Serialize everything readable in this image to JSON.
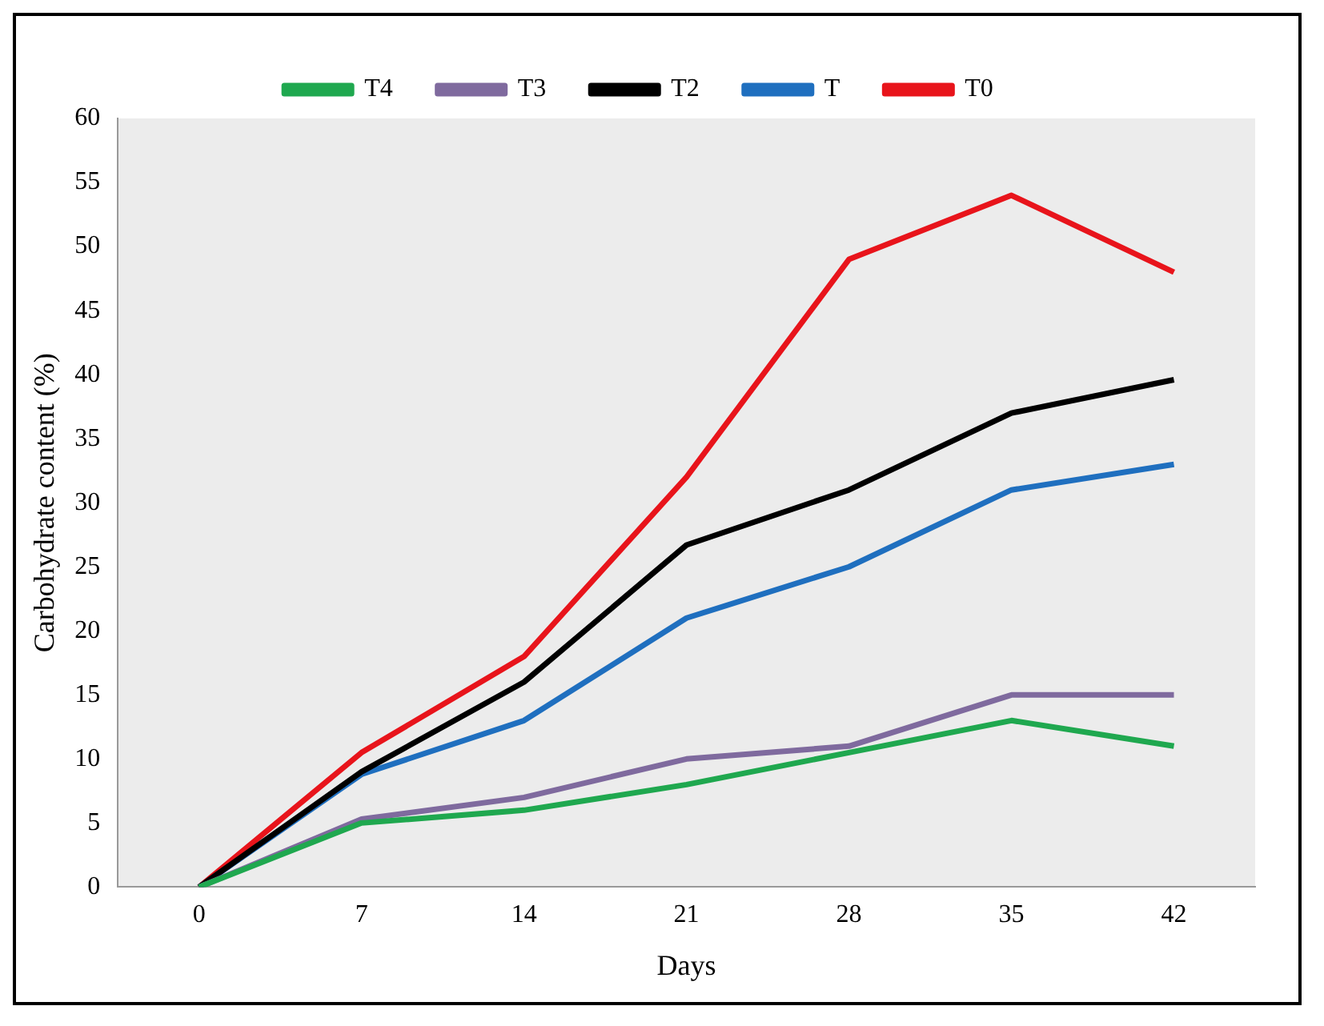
{
  "chart_data": {
    "type": "line",
    "xlabel": "Days",
    "ylabel": "Carbohydrate content (%)",
    "categories": [
      "0",
      "7",
      "14",
      "21",
      "28",
      "35",
      "42"
    ],
    "series": [
      {
        "name": "T4",
        "color": "#1fa84f",
        "values": [
          0,
          5,
          6,
          8,
          10.5,
          13,
          11
        ]
      },
      {
        "name": "T3",
        "color": "#7f6a9e",
        "values": [
          0,
          5.3,
          7,
          10,
          11,
          15,
          15
        ]
      },
      {
        "name": "T2",
        "color": "#000000",
        "values": [
          0,
          9,
          16,
          26.7,
          31,
          37,
          39.6
        ]
      },
      {
        "name": "T",
        "color": "#1f6fbf",
        "values": [
          0,
          8.8,
          13,
          21,
          25,
          31,
          33
        ]
      },
      {
        "name": "T0",
        "color": "#e8141b",
        "values": [
          0,
          10.5,
          18,
          32,
          49,
          54,
          48
        ]
      }
    ],
    "ylim": [
      0,
      60
    ],
    "yticks": [
      0,
      5,
      10,
      15,
      20,
      25,
      30,
      35,
      40,
      45,
      50,
      55,
      60
    ],
    "grid": false,
    "legend": "top",
    "marker": "none",
    "line_style": "solid"
  }
}
